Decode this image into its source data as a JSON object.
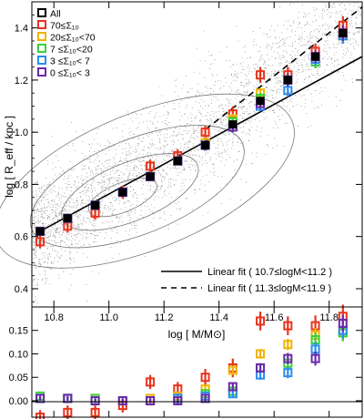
{
  "chart_data": [
    {
      "type": "scatter",
      "ylabel": "log [ R_eff / kpc ]",
      "xlim": [
        10.72,
        11.92
      ],
      "ylim": [
        0.33,
        1.5
      ],
      "x_ticks": [
        10.8,
        11.0,
        11.2,
        11.4,
        11.6,
        11.8
      ],
      "x_tick_labels": [
        "10.8",
        "11.0",
        "11.2",
        "11.4",
        "11.6",
        "11.8"
      ],
      "y_ticks": [
        0.4,
        0.6,
        0.8,
        1.0,
        1.2,
        1.4
      ],
      "y_tick_labels": [
        "0.4",
        "0.6",
        "0.8",
        "1.0",
        "1.2",
        "1.4"
      ],
      "background": "grey scatter of individual galaxies with density contours",
      "legend_position": "top-left",
      "legend": [
        {
          "label": "All",
          "color": "#000000"
        },
        {
          "label": "70≤Σ₁₀",
          "color": "#e8341c"
        },
        {
          "label": "20≤Σ₁₀<70",
          "color": "#f0b400"
        },
        {
          "label": "7 ≤Σ₁₀<20",
          "color": "#3ad03a"
        },
        {
          "label": "3 ≤Σ₁₀< 7",
          "color": "#2a8cf0"
        },
        {
          "label": "0 ≤Σ₁₀< 3",
          "color": "#6a2aa8"
        }
      ],
      "fit_legend": [
        {
          "label": "Linear fit ( 10.7≤logM<11.2 )",
          "style": "solid"
        },
        {
          "label": "Linear fit ( 11.3≤logM<11.9 )",
          "style": "dashed"
        }
      ],
      "x": [
        10.75,
        10.85,
        10.95,
        11.05,
        11.15,
        11.25,
        11.35,
        11.45,
        11.55,
        11.65,
        11.75,
        11.85
      ],
      "series": [
        {
          "name": "All",
          "color": "#000000",
          "values": [
            0.62,
            0.67,
            0.72,
            0.77,
            0.83,
            0.89,
            0.95,
            1.03,
            1.12,
            1.2,
            1.29,
            1.38
          ],
          "err": [
            0.01,
            0.01,
            0.01,
            0.01,
            0.01,
            0.01,
            0.01,
            0.01,
            0.01,
            0.01,
            0.01,
            0.02
          ]
        },
        {
          "name": "70≤Σ₁₀",
          "color": "#e8341c",
          "values": [
            0.58,
            0.64,
            0.69,
            0.77,
            0.87,
            0.91,
            1.0,
            1.07,
            1.22,
            1.22,
            1.31,
            1.41
          ],
          "err": [
            0.025,
            0.025,
            0.025,
            0.025,
            0.025,
            0.025,
            0.025,
            0.03,
            0.03,
            0.03,
            0.03,
            0.035
          ]
        },
        {
          "name": "20≤Σ₁₀<70",
          "color": "#f0b400",
          "values": [
            0.62,
            0.67,
            0.72,
            0.77,
            0.83,
            0.89,
            0.96,
            1.05,
            1.15,
            1.2,
            1.28,
            1.37
          ],
          "err": [
            0.015,
            0.015,
            0.015,
            0.015,
            0.015,
            0.015,
            0.02,
            0.02,
            0.02,
            0.025,
            0.025,
            0.03
          ]
        },
        {
          "name": "7 ≤Σ₁₀<20",
          "color": "#3ad03a",
          "values": [
            0.62,
            0.67,
            0.72,
            0.77,
            0.83,
            0.89,
            0.95,
            1.04,
            1.13,
            1.2,
            1.27,
            1.37
          ],
          "err": [
            0.015,
            0.015,
            0.015,
            0.015,
            0.015,
            0.015,
            0.02,
            0.02,
            0.02,
            0.025,
            0.025,
            0.03
          ]
        },
        {
          "name": "3 ≤Σ₁₀< 7",
          "color": "#2a8cf0",
          "values": [
            0.62,
            0.67,
            0.72,
            0.77,
            0.83,
            0.89,
            0.95,
            1.02,
            1.1,
            1.16,
            1.28,
            1.37
          ],
          "err": [
            0.015,
            0.015,
            0.015,
            0.015,
            0.015,
            0.015,
            0.02,
            0.02,
            0.02,
            0.025,
            0.025,
            0.03
          ]
        },
        {
          "name": "0 ≤Σ₁₀< 3",
          "color": "#6a2aa8",
          "values": [
            0.62,
            0.67,
            0.72,
            0.77,
            0.83,
            0.89,
            0.95,
            1.02,
            1.11,
            1.2,
            1.29,
            1.38
          ],
          "err": [
            0.015,
            0.015,
            0.015,
            0.015,
            0.015,
            0.015,
            0.02,
            0.02,
            0.02,
            0.025,
            0.025,
            0.03
          ]
        }
      ],
      "fits": [
        {
          "style": "solid",
          "x_range": [
            10.75,
            11.92
          ],
          "y_range": [
            0.62,
            1.29
          ]
        },
        {
          "style": "dashed",
          "x_range": [
            11.35,
            11.92
          ],
          "y_range": [
            1.01,
            1.48
          ]
        }
      ]
    },
    {
      "type": "scatter",
      "xlabel": "log [ M/M⊙]",
      "xlim": [
        10.72,
        11.92
      ],
      "ylim": [
        -0.035,
        0.2
      ],
      "y_ticks": [
        0.0,
        0.05,
        0.1,
        0.15
      ],
      "y_tick_labels": [
        "0.00",
        "0.05",
        "0.10",
        "0.15"
      ],
      "reference_line": 0.0,
      "x": [
        10.75,
        10.85,
        10.95,
        11.05,
        11.15,
        11.25,
        11.35,
        11.45,
        11.55,
        11.65,
        11.75,
        11.85
      ],
      "series": [
        {
          "name": "70≤Σ₁₀",
          "color": "#e8341c",
          "values": [
            -0.035,
            -0.025,
            -0.025,
            -0.01,
            0.04,
            0.025,
            0.05,
            0.07,
            0.17,
            0.16,
            0.16,
            0.18
          ],
          "err": [
            0.015,
            0.015,
            0.015,
            0.015,
            0.015,
            0.015,
            0.018,
            0.02,
            0.02,
            0.02,
            0.022,
            0.025
          ]
        },
        {
          "name": "20≤Σ₁₀<70",
          "color": "#f0b400",
          "values": [
            0.005,
            0.005,
            0.005,
            0.0,
            0.005,
            0.01,
            0.025,
            0.065,
            0.1,
            0.12,
            0.14,
            0.145
          ],
          "err": [
            0.005,
            0.005,
            0.005,
            0.005,
            0.005,
            0.006,
            0.008,
            0.008,
            0.01,
            0.012,
            0.015,
            0.018
          ]
        },
        {
          "name": "7 ≤Σ₁₀<20",
          "color": "#3ad03a",
          "values": [
            0.01,
            0.005,
            0.005,
            0.0,
            0.0,
            0.005,
            0.015,
            0.02,
            0.07,
            0.08,
            0.13,
            0.145
          ],
          "err": [
            0.005,
            0.005,
            0.005,
            0.005,
            0.005,
            0.006,
            0.008,
            0.008,
            0.01,
            0.012,
            0.015,
            0.018
          ]
        },
        {
          "name": "3 ≤Σ₁₀< 7",
          "color": "#2a8cf0",
          "values": [
            0.005,
            0.005,
            0.0,
            0.0,
            0.0,
            0.005,
            0.01,
            0.015,
            0.055,
            0.06,
            0.11,
            0.15
          ],
          "err": [
            0.005,
            0.005,
            0.005,
            0.005,
            0.005,
            0.006,
            0.008,
            0.008,
            0.01,
            0.012,
            0.015,
            0.018
          ]
        },
        {
          "name": "0 ≤Σ₁₀< 3",
          "color": "#6a2aa8",
          "values": [
            0.005,
            0.005,
            0.0,
            0.0,
            0.0,
            0.0,
            0.005,
            0.03,
            0.07,
            0.09,
            0.09,
            0.165
          ],
          "err": [
            0.005,
            0.005,
            0.005,
            0.005,
            0.005,
            0.006,
            0.008,
            0.008,
            0.01,
            0.012,
            0.015,
            0.018
          ]
        }
      ]
    }
  ]
}
